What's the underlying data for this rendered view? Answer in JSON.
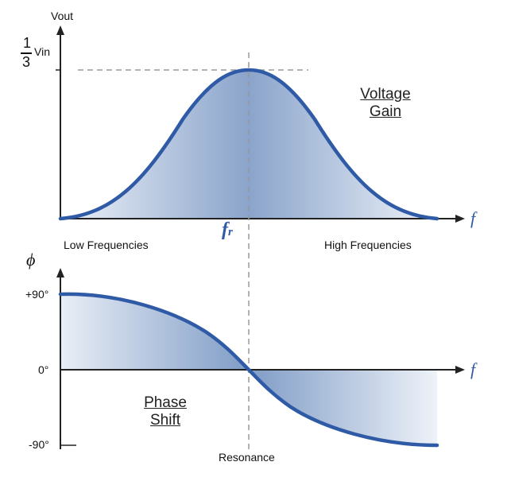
{
  "top": {
    "y_axis_label": "Vout",
    "peak_fraction_num": "1",
    "peak_fraction_den": "3",
    "peak_label_suffix": "Vin",
    "x_axis_symbol": "f",
    "resonance_symbol": "f",
    "resonance_subscript": "r",
    "left_caption": "Low Frequencies",
    "right_caption": "High Frequencies",
    "title_line1": "Voltage",
    "title_line2": "Gain"
  },
  "bottom": {
    "y_axis_symbol": "ϕ",
    "tick_top": "+90°",
    "tick_zero": "0°",
    "tick_bottom": "-90°",
    "x_axis_symbol": "f",
    "title_line1": "Phase",
    "title_line2": "Shift",
    "resonance_caption": "Resonance"
  },
  "colors": {
    "curve": "#2f5aa6",
    "fill_dark": "#7f9cc6",
    "fill_light": "#f1f4f9",
    "axis": "#222222",
    "guide": "#9a9a9a"
  }
}
